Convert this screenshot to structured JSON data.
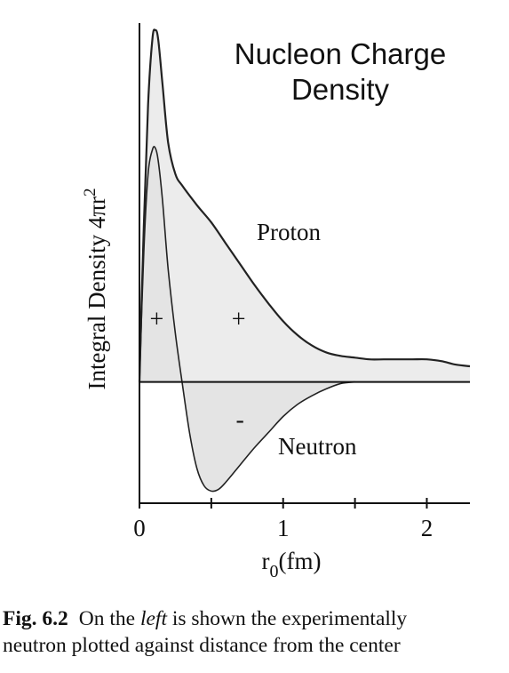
{
  "chart_data": {
    "type": "area",
    "title_lines": [
      "Nucleon Charge",
      "Density"
    ],
    "xlabel_main": "r",
    "xlabel_sub": "0",
    "xlabel_unit": "(fm)",
    "ylabel": "Integral Density 4πr",
    "ylabel_sup": "2",
    "xlim": [
      0,
      2.3
    ],
    "ylim": [
      -0.7,
      2.05
    ],
    "xticks": [
      0,
      1,
      2
    ],
    "minor_xticks": [
      0.5,
      1.5
    ],
    "grid": false,
    "legend": "none",
    "series": [
      {
        "name": "Proton",
        "x": [
          0,
          0.03,
          0.06,
          0.09,
          0.11,
          0.13,
          0.16,
          0.2,
          0.25,
          0.3,
          0.4,
          0.5,
          0.6,
          0.7,
          0.8,
          0.9,
          1.0,
          1.1,
          1.2,
          1.3,
          1.4,
          1.5,
          1.6,
          1.7,
          1.8,
          1.9,
          2.0,
          2.1,
          2.2,
          2.3
        ],
        "y": [
          0,
          0.9,
          1.6,
          1.98,
          2.03,
          1.98,
          1.72,
          1.38,
          1.2,
          1.13,
          1.02,
          0.92,
          0.8,
          0.68,
          0.56,
          0.45,
          0.35,
          0.27,
          0.21,
          0.17,
          0.15,
          0.14,
          0.13,
          0.13,
          0.13,
          0.13,
          0.13,
          0.12,
          0.1,
          0.09
        ],
        "label": "Proton"
      },
      {
        "name": "Neutron",
        "x": [
          0,
          0.03,
          0.06,
          0.09,
          0.11,
          0.13,
          0.16,
          0.2,
          0.25,
          0.3,
          0.35,
          0.4,
          0.45,
          0.5,
          0.55,
          0.6,
          0.7,
          0.8,
          0.9,
          1.0,
          1.1,
          1.2,
          1.3,
          1.4,
          1.5
        ],
        "y": [
          0,
          0.75,
          1.2,
          1.34,
          1.35,
          1.28,
          1.05,
          0.65,
          0.28,
          -0.02,
          -0.3,
          -0.5,
          -0.6,
          -0.63,
          -0.62,
          -0.58,
          -0.48,
          -0.38,
          -0.29,
          -0.2,
          -0.13,
          -0.08,
          -0.04,
          -0.01,
          0
        ],
        "label": "Neutron"
      }
    ],
    "annotations": [
      {
        "text": "+",
        "x": 0.12,
        "y": 0.35
      },
      {
        "text": "+",
        "x": 0.69,
        "y": 0.35
      },
      {
        "text": "-",
        "x": 0.7,
        "y": -0.23
      }
    ]
  },
  "caption": {
    "fig_label": "Fig. 6.2",
    "line1_before": "On the ",
    "line1_italic": "left",
    "line1_after": " is shown the experimentally",
    "line2": "neutron plotted against distance from the center"
  }
}
